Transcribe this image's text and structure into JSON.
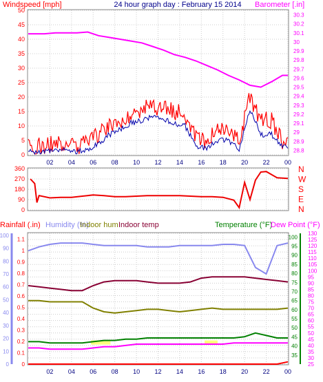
{
  "header": {
    "left": "Windspeed [mph]",
    "center": "24 hour graph day : February 15 2014",
    "right": "Barometer [.in]"
  },
  "colors": {
    "windspeed": "#ff0000",
    "windavg": "#0000aa",
    "barometer": "#ff00ff",
    "winddir": "#ee0000",
    "rainfall": "#ff0000",
    "humidity": "#8888ee",
    "indoor_hum": "#808000",
    "indoor_temp": "#880033",
    "temperature": "#008000",
    "dewpoint": "#ff00ff",
    "solar": "#ffff66"
  },
  "xticks": [
    "02",
    "04",
    "06",
    "08",
    "10",
    "12",
    "14",
    "16",
    "18",
    "20",
    "22",
    "00"
  ],
  "panel1": {
    "left_ticks": [
      "0",
      "5",
      "10",
      "15",
      "20",
      "25",
      "30",
      "35",
      "40",
      "45",
      "50"
    ],
    "right_ticks": [
      "28.8",
      "28.9",
      "29",
      "29.1",
      "29.2",
      "29.3",
      "29.4",
      "29.5",
      "29.6",
      "29.7",
      "29.8",
      "29.9",
      "30",
      "30.1",
      "30.2",
      "30.3"
    ]
  },
  "panel2": {
    "left_ticks": [
      "0",
      "90",
      "180",
      "270",
      "360"
    ],
    "right_labels": [
      "N",
      "W",
      "S",
      "E",
      "N"
    ]
  },
  "panel3": {
    "legend": {
      "rain": "Rainfall (.in)",
      "humidity": "Humidity (%)",
      "indoor_hum": "Indoor hum",
      "indoor_temp": "Indoor temp",
      "temperature": "Temperature (°F)",
      "dewpoint": "Dew Point (°F)"
    },
    "rain_ticks": [
      "0",
      "0.1",
      "0.2",
      "0.3",
      "0.4",
      "0.5",
      "0.6",
      "0.7",
      "0.8",
      "0.9",
      "1",
      "1.1"
    ],
    "hum_ticks": [
      "0",
      "10",
      "20",
      "30",
      "40",
      "50",
      "60",
      "70",
      "80",
      "90",
      "100"
    ],
    "temp_ticks": [
      "35",
      "40",
      "45",
      "50",
      "55",
      "60",
      "65",
      "70",
      "75",
      "80",
      "85",
      "90",
      "95",
      "100"
    ],
    "right_ticks": [
      "25",
      "30",
      "35",
      "40",
      "45",
      "50",
      "55",
      "60",
      "65",
      "70",
      "75",
      "80",
      "85",
      "90",
      "95",
      "100",
      "105",
      "110",
      "115",
      "120",
      "125",
      "130"
    ]
  },
  "chart_data": [
    {
      "type": "line",
      "title": "24 hour graph day : February 15 2014",
      "xlabel": "",
      "ylabel": "Windspeed [mph]",
      "y2label": "Barometer [.in]",
      "ylim": [
        0,
        50
      ],
      "y2lim": [
        28.75,
        30.35
      ],
      "x": [
        1,
        2,
        3,
        4,
        5,
        6,
        7,
        8,
        9,
        10,
        11,
        12,
        13,
        14,
        15,
        16,
        17,
        18,
        19,
        20,
        21,
        22,
        23,
        24
      ],
      "series": [
        {
          "name": "Windspeed [mph]",
          "axis": "left",
          "values": [
            3,
            3,
            4,
            4,
            3,
            4,
            7,
            10,
            12,
            14,
            16,
            17,
            16,
            15,
            14,
            6,
            5,
            8,
            8,
            5,
            20,
            12,
            12,
            5
          ]
        },
        {
          "name": "",
          "axis": "left",
          "values": [
            1,
            1,
            2,
            2,
            1,
            2,
            4,
            7,
            9,
            11,
            12,
            13,
            12,
            11,
            10,
            3,
            2,
            5,
            5,
            2,
            16,
            7,
            7,
            3
          ]
        },
        {
          "name": "Barometer [.in]",
          "axis": "right",
          "values": [
            30.09,
            30.09,
            30.1,
            30.1,
            30.1,
            30.11,
            30.07,
            30.05,
            30.03,
            30.01,
            29.99,
            29.95,
            29.91,
            29.86,
            29.83,
            29.79,
            29.74,
            29.69,
            29.63,
            29.58,
            29.52,
            29.5,
            29.56,
            29.63
          ]
        }
      ]
    },
    {
      "type": "line",
      "ylabel": "",
      "ylim": [
        0,
        360
      ],
      "x": [
        0.2,
        0.6,
        0.8,
        1,
        2,
        3,
        4,
        5,
        6,
        7,
        8,
        9,
        10,
        11,
        12,
        13,
        14,
        15,
        16,
        17,
        18,
        19,
        19.5,
        20,
        20.5,
        21,
        21.5,
        22,
        23,
        24
      ],
      "series": [
        {
          "name": "",
          "values": [
            270,
            230,
            65,
            125,
            105,
            110,
            110,
            120,
            130,
            125,
            115,
            115,
            120,
            125,
            125,
            125,
            125,
            120,
            115,
            115,
            110,
            85,
            20,
            240,
            90,
            260,
            330,
            335,
            280,
            275
          ]
        }
      ]
    },
    {
      "type": "line",
      "legend_entries": [
        "Rainfall (.in)",
        "Humidity (%)",
        "Indoor hum",
        "Indoor temp",
        "Temperature (°F)",
        "Dew Point (°F)"
      ],
      "x": [
        0,
        1,
        2,
        3,
        4,
        5,
        6,
        7,
        8,
        9,
        10,
        11,
        12,
        13,
        14,
        15,
        16,
        17,
        18,
        19,
        20,
        21,
        22,
        23,
        24
      ],
      "series": [
        {
          "name": "Humidity (%)",
          "axis": "humidity",
          "values": [
            88,
            91,
            93,
            94,
            94,
            94,
            93,
            92,
            92,
            92,
            92,
            91,
            91,
            91,
            92,
            92,
            92,
            92,
            93,
            93,
            92,
            75,
            70,
            92,
            94
          ]
        },
        {
          "name": "Indoor hum",
          "axis": "temp_outer",
          "values": [
            76,
            76,
            75,
            75,
            75,
            75,
            70,
            67,
            66,
            67,
            68,
            69,
            69,
            68,
            67,
            68,
            69,
            70,
            69,
            69,
            69,
            69,
            69,
            69,
            70
          ]
        },
        {
          "name": "Indoor temp",
          "axis": "temp_outer",
          "values": [
            88,
            87,
            86,
            85,
            84,
            84,
            88,
            91,
            92,
            92,
            92,
            91,
            90,
            90,
            90,
            91,
            94,
            95,
            95,
            95,
            95,
            94,
            93,
            92,
            91
          ]
        },
        {
          "name": "Temperature (°F)",
          "axis": "temp_outer",
          "values": [
            43,
            43,
            42,
            42,
            42,
            42,
            43,
            44,
            44,
            45,
            45,
            46,
            46,
            46,
            46,
            46,
            46,
            46,
            46,
            46,
            47,
            50,
            48,
            46,
            46
          ]
        },
        {
          "name": "Dew Point (°F)",
          "axis": "temp_outer",
          "values": [
            38,
            38,
            37,
            37,
            37,
            37,
            38,
            39,
            39,
            40,
            41,
            41,
            41,
            41,
            41,
            41,
            41,
            41,
            41,
            42,
            42,
            42,
            42,
            42,
            42
          ]
        },
        {
          "name": "Rainfall (.in)",
          "axis": "rain",
          "values": [
            0,
            0,
            0,
            0,
            0,
            0,
            0,
            0,
            0,
            0,
            0,
            0,
            0,
            0,
            0,
            0,
            0,
            0,
            0,
            0,
            0,
            0,
            0,
            0,
            0.02
          ]
        }
      ]
    }
  ]
}
